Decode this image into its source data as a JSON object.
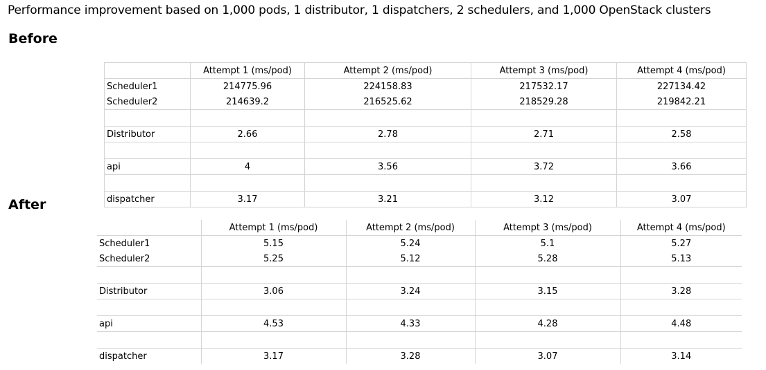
{
  "title": "Performance improvement based on 1,000 pods, 1 distributor, 1 dispatchers, 2 schedulers, and 1,000 OpenStack clusters",
  "before": {
    "heading": "Before",
    "columns": [
      "Attempt 1 (ms/pod)",
      "Attempt 2 (ms/pod)",
      "Attempt 3 (ms/pod)",
      "Attempt 4 (ms/pod)"
    ],
    "rows": {
      "scheduler1": {
        "label": "Scheduler1",
        "values": [
          "214775.96",
          "224158.83",
          "217532.17",
          "227134.42"
        ]
      },
      "scheduler2": {
        "label": "Scheduler2",
        "values": [
          "214639.2",
          "216525.62",
          "218529.28",
          "219842.21"
        ]
      },
      "distributor": {
        "label": "Distributor",
        "values": [
          "2.66",
          "2.78",
          "2.71",
          "2.58"
        ]
      },
      "api": {
        "label": "api",
        "values": [
          "4",
          "3.56",
          "3.72",
          "3.66"
        ]
      },
      "dispatcher": {
        "label": "dispatcher",
        "values": [
          "3.17",
          "3.21",
          "3.12",
          "3.07"
        ]
      }
    }
  },
  "after": {
    "heading": "After",
    "columns": [
      "Attempt 1 (ms/pod)",
      "Attempt 2 (ms/pod)",
      "Attempt 3 (ms/pod)",
      "Attempt 4 (ms/pod)"
    ],
    "rows": {
      "scheduler1": {
        "label": "Scheduler1",
        "values": [
          "5.15",
          "5.24",
          "5.1",
          "5.27"
        ]
      },
      "scheduler2": {
        "label": "Scheduler2",
        "values": [
          "5.25",
          "5.12",
          "5.28",
          "5.13"
        ]
      },
      "distributor": {
        "label": "Distributor",
        "values": [
          "3.06",
          "3.24",
          "3.15",
          "3.28"
        ]
      },
      "api": {
        "label": "api",
        "values": [
          "4.53",
          "4.33",
          "4.28",
          "4.48"
        ]
      },
      "dispatcher": {
        "label": "dispatcher",
        "values": [
          "3.17",
          "3.28",
          "3.07",
          "3.14"
        ]
      }
    }
  }
}
